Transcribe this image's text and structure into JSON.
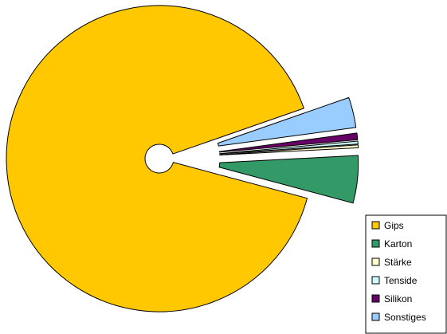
{
  "chart_data": {
    "type": "pie",
    "style": "exploded donut",
    "categories": [
      "Gips",
      "Karton",
      "Stärke",
      "Tenside",
      "Silikon",
      "Sonstiges"
    ],
    "values": [
      90.5,
      5.0,
      0.3,
      0.3,
      0.7,
      3.2
    ],
    "colors": [
      "#FFC800",
      "#339966",
      "#FFFFCC",
      "#CCFFFF",
      "#660066",
      "#99CCFF"
    ],
    "legend_position": "bottom-right"
  }
}
